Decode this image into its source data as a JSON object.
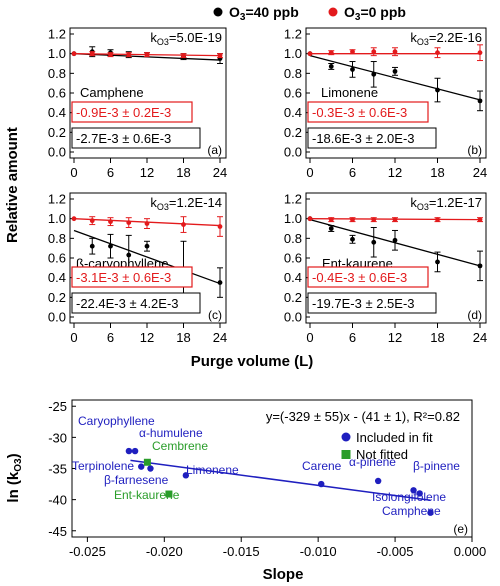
{
  "colors": {
    "black": "#000000",
    "red": "#e31a1c",
    "blue": "#1f1fbf",
    "green": "#2a9d2a"
  },
  "legend_top": [
    {
      "name": "O3=40 ppb",
      "color": "#000000"
    },
    {
      "name": "O3=0 ppb",
      "color": "#e31a1c"
    }
  ],
  "chart_data": [
    {
      "type": "scatter",
      "panel": "(a)",
      "compound": "Camphene",
      "k_label": "kO3=5.0E-19",
      "slope_red": "-0.9E-3 ± 0.2E-3",
      "slope_black": "-2.7E-3 ± 0.6E-3",
      "xlabel": "Purge volume (L)",
      "ylabel": "Relative amount",
      "xlim": [
        0,
        24
      ],
      "ylim": [
        0,
        1.2
      ],
      "xticks": [
        0,
        6,
        12,
        18,
        24
      ],
      "yticks": [
        0.0,
        0.2,
        0.4,
        0.6,
        0.8,
        1.0,
        1.2
      ],
      "series": [
        {
          "name": "O3=40 ppb",
          "x": [
            0,
            3,
            6,
            9,
            12,
            18,
            24
          ],
          "y": [
            1.0,
            1.02,
            1.01,
            0.99,
            0.99,
            0.97,
            0.95
          ],
          "err": [
            0.01,
            0.05,
            0.03,
            0.03,
            0.02,
            0.03,
            0.05
          ],
          "fit": [
            [
              0,
              1.0
            ],
            [
              24,
              0.935
            ]
          ]
        },
        {
          "name": "O3=0 ppb",
          "x": [
            0,
            3,
            6,
            9,
            12,
            18,
            24
          ],
          "y": [
            1.0,
            1.0,
            0.99,
            0.99,
            0.99,
            0.98,
            0.98
          ],
          "err": [
            0.01,
            0.02,
            0.02,
            0.02,
            0.02,
            0.02,
            0.02
          ],
          "fit": [
            [
              0,
              1.0
            ],
            [
              24,
              0.98
            ]
          ]
        }
      ]
    },
    {
      "type": "scatter",
      "panel": "(b)",
      "compound": "Limonene",
      "k_label": "kO3=2.2E-16",
      "slope_red": "-0.3E-3 ± 0.6E-3",
      "slope_black": "-18.6E-3 ± 2.0E-3",
      "xlabel": "Purge volume (L)",
      "ylabel": "Relative amount",
      "xlim": [
        0,
        24
      ],
      "ylim": [
        0,
        1.2
      ],
      "xticks": [
        0,
        6,
        12,
        18,
        24
      ],
      "yticks": [
        0.0,
        0.2,
        0.4,
        0.6,
        0.8,
        1.0,
        1.2
      ],
      "series": [
        {
          "name": "O3=40 ppb",
          "x": [
            0,
            3,
            6,
            9,
            12,
            18,
            24
          ],
          "y": [
            1.0,
            0.87,
            0.84,
            0.79,
            0.82,
            0.63,
            0.52
          ],
          "err": [
            0.01,
            0.03,
            0.08,
            0.13,
            0.04,
            0.12,
            0.1
          ],
          "fit": [
            [
              0,
              0.98
            ],
            [
              24,
              0.53
            ]
          ]
        },
        {
          "name": "O3=0 ppb",
          "x": [
            0,
            3,
            6,
            9,
            12,
            18,
            24
          ],
          "y": [
            1.0,
            1.01,
            1.02,
            1.02,
            1.02,
            1.01,
            1.01
          ],
          "err": [
            0.01,
            0.02,
            0.02,
            0.04,
            0.04,
            0.05,
            0.08
          ],
          "fit": [
            [
              0,
              1.0
            ],
            [
              24,
              1.0
            ]
          ]
        }
      ]
    },
    {
      "type": "scatter",
      "panel": "(c)",
      "compound": "ß-caryophyllene",
      "k_label": "kO3=1.2E-14",
      "slope_red": "-3.1E-3 ± 0.6E-3",
      "slope_black": "-22.4E-3 ± 4.2E-3",
      "xlabel": "Purge volume (L)",
      "ylabel": "Relative amount",
      "xlim": [
        0,
        24
      ],
      "ylim": [
        0,
        1.2
      ],
      "xticks": [
        0,
        6,
        12,
        18,
        24
      ],
      "yticks": [
        0.0,
        0.2,
        0.4,
        0.6,
        0.8,
        1.0,
        1.2
      ],
      "series": [
        {
          "name": "O3=40 ppb",
          "x": [
            3,
            6,
            9,
            12,
            18,
            24
          ],
          "y": [
            0.72,
            0.72,
            0.63,
            0.72,
            0.47,
            0.35
          ],
          "err": [
            0.08,
            0.12,
            0.2,
            0.05,
            0.3,
            0.15
          ],
          "fit": [
            [
              0,
              0.88
            ],
            [
              24,
              0.34
            ]
          ]
        },
        {
          "name": "O3=0 ppb",
          "x": [
            0,
            3,
            6,
            9,
            12,
            18,
            24
          ],
          "y": [
            1.0,
            0.98,
            0.97,
            0.96,
            0.95,
            0.94,
            0.92
          ],
          "err": [
            0.01,
            0.04,
            0.04,
            0.05,
            0.05,
            0.08,
            0.1
          ],
          "fit": [
            [
              0,
              1.0
            ],
            [
              24,
              0.93
            ]
          ]
        }
      ]
    },
    {
      "type": "scatter",
      "panel": "(d)",
      "compound": "Ent-kaurene",
      "k_label": "kO3=1.2E-17",
      "slope_red": "-0.4E-3 ± 0.6E-3",
      "slope_black": "-19.7E-3 ± 2.5E-3",
      "xlabel": "Purge volume (L)",
      "ylabel": "Relative amount",
      "xlim": [
        0,
        24
      ],
      "ylim": [
        0,
        1.2
      ],
      "xticks": [
        0,
        6,
        12,
        18,
        24
      ],
      "yticks": [
        0.0,
        0.2,
        0.4,
        0.6,
        0.8,
        1.0,
        1.2
      ],
      "series": [
        {
          "name": "O3=40 ppb",
          "x": [
            0,
            3,
            6,
            9,
            12,
            18,
            24
          ],
          "y": [
            1.0,
            0.9,
            0.79,
            0.76,
            0.78,
            0.56,
            0.52
          ],
          "err": [
            0.01,
            0.03,
            0.04,
            0.15,
            0.1,
            0.1,
            0.15
          ],
          "fit": [
            [
              0,
              0.99
            ],
            [
              24,
              0.52
            ]
          ]
        },
        {
          "name": "O3=0 ppb",
          "x": [
            0,
            3,
            6,
            9,
            12,
            18,
            24
          ],
          "y": [
            1.0,
            0.99,
            0.99,
            0.99,
            0.99,
            0.99,
            0.99
          ],
          "err": [
            0.01,
            0.02,
            0.02,
            0.02,
            0.02,
            0.02,
            0.02
          ],
          "fit": [
            [
              0,
              1.0
            ],
            [
              24,
              0.99
            ]
          ]
        }
      ]
    },
    {
      "type": "scatter",
      "panel": "(e)",
      "xlabel": "Slope",
      "ylabel": "ln (kO3)",
      "equation": "y=(-329 ± 55)x - (41 ± 1), R²=0.82",
      "xlim": [
        -0.026,
        0.0
      ],
      "ylim": [
        -46,
        -24
      ],
      "xticks": [
        "-0.025",
        "-0.020",
        "-0.015",
        "-0.010",
        "-0.005",
        "0.000"
      ],
      "xtick_values": [
        -0.025,
        -0.02,
        -0.015,
        -0.01,
        -0.005,
        0.0
      ],
      "yticks": [
        -25,
        -30,
        -35,
        -40,
        -45
      ],
      "legend": [
        {
          "name": "Included in fit",
          "marker": "circle",
          "color": "#1f1fbf"
        },
        {
          "name": "Not fitted",
          "marker": "square",
          "color": "#2a9d2a"
        }
      ],
      "fit_line": [
        [
          -0.0222,
          -33.7
        ],
        [
          -0.0027,
          -40.1
        ]
      ],
      "points": [
        {
          "name": "Caryophyllene",
          "x": -0.0223,
          "y": -32.2,
          "group": "fit"
        },
        {
          "name": "α-humulene",
          "x": -0.0219,
          "y": -32.2,
          "group": "fit"
        },
        {
          "name": "Terpinolene",
          "x": -0.0215,
          "y": -34.7,
          "group": "fit"
        },
        {
          "name": "β-farnesene",
          "x": -0.0209,
          "y": -35.0,
          "group": "fit"
        },
        {
          "name": "Limonene",
          "x": -0.0186,
          "y": -36.1,
          "group": "fit"
        },
        {
          "name": "Carene",
          "x": -0.0098,
          "y": -37.5,
          "group": "fit"
        },
        {
          "name": "α-pinene",
          "x": -0.0061,
          "y": -37.0,
          "group": "fit"
        },
        {
          "name": "β-pinene",
          "x": -0.0038,
          "y": -38.5,
          "group": "fit"
        },
        {
          "name": "Isolongifolene",
          "x": -0.0034,
          "y": -39.0,
          "group": "fit"
        },
        {
          "name": "Camphene",
          "x": -0.0027,
          "y": -42.1,
          "group": "fit"
        },
        {
          "name": "Cembrene",
          "x": -0.0211,
          "y": -34.0,
          "group": "nofit"
        },
        {
          "name": "Ent-kaurene",
          "x": -0.0197,
          "y": -39.1,
          "group": "nofit"
        }
      ]
    }
  ]
}
